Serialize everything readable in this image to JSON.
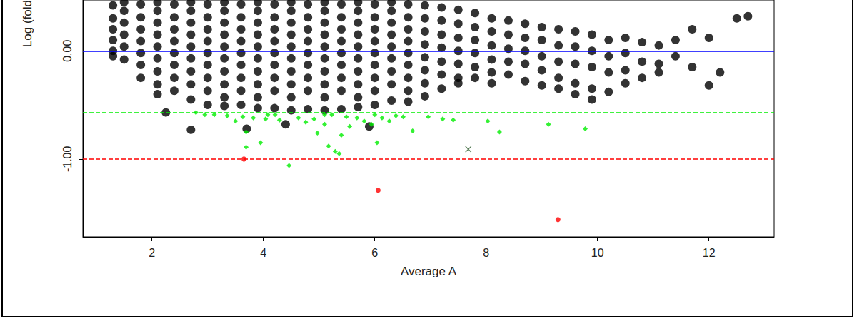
{
  "chart_data": {
    "type": "scatter",
    "x_label": "Average A",
    "y_label": "Log (fold",
    "xlim": [
      0.76,
      13.17
    ],
    "ylim": [
      -1.72,
      0.47
    ],
    "xticks": [
      2,
      4,
      6,
      8,
      10,
      12
    ],
    "yticks": [
      {
        "value": 0,
        "label": "0.00"
      },
      {
        "value": -1,
        "label": "-1.00"
      }
    ],
    "grid": false,
    "hlines": [
      {
        "y": 0,
        "color": "#0000ff",
        "line_style": "solid"
      },
      {
        "y": -0.572,
        "color": "#00ee00",
        "line_style": "dashed"
      },
      {
        "y": -1,
        "color": "#ff0000",
        "line_style": "dashed"
      }
    ],
    "series": [
      {
        "color": "#000000",
        "marker": "circle",
        "points": [
          [
            1.3,
            0.42
          ],
          [
            1.3,
            0.3
          ],
          [
            1.3,
            0.2
          ],
          [
            1.3,
            0.1
          ],
          [
            1.3,
            0.0
          ],
          [
            1.3,
            -0.05
          ],
          [
            1.5,
            0.45
          ],
          [
            1.5,
            0.37
          ],
          [
            1.5,
            0.26
          ],
          [
            1.5,
            0.15
          ],
          [
            1.5,
            0.04
          ],
          [
            1.5,
            -0.08
          ],
          [
            1.8,
            0.43
          ],
          [
            1.8,
            0.31
          ],
          [
            1.8,
            0.2
          ],
          [
            1.8,
            0.09
          ],
          [
            1.8,
            -0.02
          ],
          [
            1.8,
            -0.13
          ],
          [
            1.8,
            -0.25
          ],
          [
            2.1,
            0.45
          ],
          [
            2.1,
            0.37
          ],
          [
            2.1,
            0.26
          ],
          [
            2.1,
            0.15
          ],
          [
            2.1,
            0.04
          ],
          [
            2.1,
            -0.07
          ],
          [
            2.1,
            -0.19
          ],
          [
            2.1,
            -0.31
          ],
          [
            2.1,
            -0.4
          ],
          [
            2.4,
            0.43
          ],
          [
            2.4,
            0.31
          ],
          [
            2.4,
            0.2
          ],
          [
            2.4,
            0.09
          ],
          [
            2.4,
            -0.02
          ],
          [
            2.4,
            -0.13
          ],
          [
            2.4,
            -0.25
          ],
          [
            2.4,
            -0.37
          ],
          [
            2.25,
            -0.57
          ],
          [
            2.7,
            0.45
          ],
          [
            2.7,
            0.37
          ],
          [
            2.7,
            0.26
          ],
          [
            2.7,
            0.15
          ],
          [
            2.7,
            0.04
          ],
          [
            2.7,
            -0.07
          ],
          [
            2.7,
            -0.19
          ],
          [
            2.7,
            -0.31
          ],
          [
            2.7,
            -0.45
          ],
          [
            2.7,
            -0.73
          ],
          [
            3.0,
            0.43
          ],
          [
            3.0,
            0.31
          ],
          [
            3.0,
            0.2
          ],
          [
            3.0,
            0.09
          ],
          [
            3.0,
            -0.02
          ],
          [
            3.0,
            -0.13
          ],
          [
            3.0,
            -0.25
          ],
          [
            3.0,
            -0.37
          ],
          [
            3.0,
            -0.5
          ],
          [
            3.3,
            0.45
          ],
          [
            3.3,
            0.37
          ],
          [
            3.3,
            0.26
          ],
          [
            3.3,
            0.15
          ],
          [
            3.3,
            0.04
          ],
          [
            3.3,
            -0.07
          ],
          [
            3.3,
            -0.19
          ],
          [
            3.3,
            -0.31
          ],
          [
            3.3,
            -0.43
          ],
          [
            3.3,
            -0.51
          ],
          [
            3.6,
            0.43
          ],
          [
            3.6,
            0.31
          ],
          [
            3.6,
            0.2
          ],
          [
            3.6,
            0.09
          ],
          [
            3.6,
            -0.02
          ],
          [
            3.6,
            -0.13
          ],
          [
            3.6,
            -0.25
          ],
          [
            3.6,
            -0.37
          ],
          [
            3.6,
            -0.5
          ],
          [
            3.7,
            -0.72
          ],
          [
            3.9,
            0.45
          ],
          [
            3.9,
            0.37
          ],
          [
            3.9,
            0.26
          ],
          [
            3.9,
            0.15
          ],
          [
            3.9,
            0.04
          ],
          [
            3.9,
            -0.07
          ],
          [
            3.9,
            -0.19
          ],
          [
            3.9,
            -0.31
          ],
          [
            3.9,
            -0.43
          ],
          [
            3.9,
            -0.53
          ],
          [
            4.2,
            0.43
          ],
          [
            4.2,
            0.31
          ],
          [
            4.2,
            0.2
          ],
          [
            4.2,
            0.09
          ],
          [
            4.2,
            -0.02
          ],
          [
            4.2,
            -0.13
          ],
          [
            4.2,
            -0.25
          ],
          [
            4.2,
            -0.37
          ],
          [
            4.2,
            -0.53
          ],
          [
            4.4,
            -0.68
          ],
          [
            4.5,
            0.45
          ],
          [
            4.5,
            0.37
          ],
          [
            4.5,
            0.26
          ],
          [
            4.5,
            0.15
          ],
          [
            4.5,
            0.04
          ],
          [
            4.5,
            -0.07
          ],
          [
            4.5,
            -0.19
          ],
          [
            4.5,
            -0.31
          ],
          [
            4.5,
            -0.43
          ],
          [
            4.5,
            -0.55
          ],
          [
            4.8,
            0.43
          ],
          [
            4.8,
            0.31
          ],
          [
            4.8,
            0.2
          ],
          [
            4.8,
            0.09
          ],
          [
            4.8,
            -0.02
          ],
          [
            4.8,
            -0.13
          ],
          [
            4.8,
            -0.25
          ],
          [
            4.8,
            -0.37
          ],
          [
            4.8,
            -0.54
          ],
          [
            5.1,
            0.45
          ],
          [
            5.1,
            0.37
          ],
          [
            5.1,
            0.26
          ],
          [
            5.1,
            0.15
          ],
          [
            5.1,
            0.04
          ],
          [
            5.1,
            -0.07
          ],
          [
            5.1,
            -0.19
          ],
          [
            5.1,
            -0.31
          ],
          [
            5.1,
            -0.43
          ],
          [
            5.1,
            -0.55
          ],
          [
            5.4,
            0.43
          ],
          [
            5.4,
            0.31
          ],
          [
            5.4,
            0.2
          ],
          [
            5.4,
            0.09
          ],
          [
            5.4,
            -0.02
          ],
          [
            5.4,
            -0.13
          ],
          [
            5.4,
            -0.25
          ],
          [
            5.4,
            -0.37
          ],
          [
            5.4,
            -0.54
          ],
          [
            5.7,
            0.45
          ],
          [
            5.7,
            0.37
          ],
          [
            5.7,
            0.26
          ],
          [
            5.7,
            0.15
          ],
          [
            5.7,
            0.04
          ],
          [
            5.7,
            -0.07
          ],
          [
            5.7,
            -0.19
          ],
          [
            5.7,
            -0.31
          ],
          [
            5.7,
            -0.43
          ],
          [
            5.7,
            -0.52
          ],
          [
            6.0,
            0.43
          ],
          [
            6.0,
            0.31
          ],
          [
            6.0,
            0.2
          ],
          [
            6.0,
            0.09
          ],
          [
            6.0,
            -0.02
          ],
          [
            6.0,
            -0.13
          ],
          [
            6.0,
            -0.25
          ],
          [
            6.0,
            -0.37
          ],
          [
            6.0,
            -0.5
          ],
          [
            5.9,
            -0.7
          ],
          [
            6.3,
            0.45
          ],
          [
            6.3,
            0.37
          ],
          [
            6.3,
            0.26
          ],
          [
            6.3,
            0.15
          ],
          [
            6.3,
            0.04
          ],
          [
            6.3,
            -0.07
          ],
          [
            6.3,
            -0.19
          ],
          [
            6.3,
            -0.31
          ],
          [
            6.3,
            -0.46
          ],
          [
            6.6,
            0.43
          ],
          [
            6.6,
            0.31
          ],
          [
            6.6,
            0.2
          ],
          [
            6.6,
            0.09
          ],
          [
            6.6,
            -0.02
          ],
          [
            6.6,
            -0.13
          ],
          [
            6.6,
            -0.25
          ],
          [
            6.6,
            -0.37
          ],
          [
            6.6,
            -0.47
          ],
          [
            6.9,
            0.42
          ],
          [
            6.9,
            0.3
          ],
          [
            6.9,
            0.18
          ],
          [
            6.9,
            0.06
          ],
          [
            6.9,
            -0.06
          ],
          [
            6.9,
            -0.18
          ],
          [
            6.9,
            -0.3
          ],
          [
            6.9,
            -0.42
          ],
          [
            7.2,
            0.4
          ],
          [
            7.2,
            0.28
          ],
          [
            7.2,
            0.15
          ],
          [
            7.2,
            0.03
          ],
          [
            7.2,
            -0.1
          ],
          [
            7.2,
            -0.22
          ],
          [
            7.2,
            -0.35
          ],
          [
            7.5,
            0.38
          ],
          [
            7.5,
            0.25
          ],
          [
            7.5,
            0.12
          ],
          [
            7.5,
            0.0
          ],
          [
            7.5,
            -0.12
          ],
          [
            7.5,
            -0.25
          ],
          [
            7.5,
            -0.3
          ],
          [
            7.8,
            0.35
          ],
          [
            7.8,
            0.22
          ],
          [
            7.8,
            0.1
          ],
          [
            7.8,
            -0.02
          ],
          [
            7.8,
            -0.15
          ],
          [
            7.8,
            -0.25
          ],
          [
            8.1,
            0.3
          ],
          [
            8.1,
            0.18
          ],
          [
            8.1,
            0.05
          ],
          [
            8.1,
            -0.08
          ],
          [
            8.1,
            -0.2
          ],
          [
            8.1,
            -0.3
          ],
          [
            8.4,
            0.28
          ],
          [
            8.4,
            0.15
          ],
          [
            8.4,
            0.02
          ],
          [
            8.4,
            -0.1
          ],
          [
            8.4,
            -0.22
          ],
          [
            8.7,
            0.25
          ],
          [
            8.7,
            0.12
          ],
          [
            8.7,
            0.0
          ],
          [
            8.7,
            -0.12
          ],
          [
            8.7,
            -0.28
          ],
          [
            9.0,
            0.22
          ],
          [
            9.0,
            0.1
          ],
          [
            9.0,
            -0.05
          ],
          [
            9.0,
            -0.18
          ],
          [
            9.0,
            -0.32
          ],
          [
            9.3,
            0.2
          ],
          [
            9.3,
            0.05
          ],
          [
            9.3,
            -0.1
          ],
          [
            9.3,
            -0.25
          ],
          [
            9.3,
            -0.35
          ],
          [
            9.6,
            0.18
          ],
          [
            9.6,
            0.04
          ],
          [
            9.6,
            -0.12
          ],
          [
            9.6,
            -0.3
          ],
          [
            9.6,
            -0.4
          ],
          [
            9.9,
            0.15
          ],
          [
            9.9,
            0.0
          ],
          [
            9.9,
            -0.15
          ],
          [
            9.9,
            -0.35
          ],
          [
            9.9,
            -0.45
          ],
          [
            10.2,
            0.1
          ],
          [
            10.2,
            -0.05
          ],
          [
            10.2,
            -0.2
          ],
          [
            10.2,
            -0.38
          ],
          [
            10.5,
            0.12
          ],
          [
            10.5,
            -0.02
          ],
          [
            10.5,
            -0.18
          ],
          [
            10.5,
            -0.3
          ],
          [
            10.8,
            0.08
          ],
          [
            10.8,
            -0.1
          ],
          [
            10.8,
            -0.25
          ],
          [
            11.1,
            0.05
          ],
          [
            11.1,
            -0.12
          ],
          [
            11.1,
            -0.2
          ],
          [
            11.4,
            0.1
          ],
          [
            11.4,
            -0.05
          ],
          [
            11.7,
            0.2
          ],
          [
            11.7,
            -0.15
          ],
          [
            12.0,
            0.12
          ],
          [
            12.0,
            -0.32
          ],
          [
            12.2,
            -0.2
          ],
          [
            12.5,
            0.3
          ],
          [
            12.7,
            0.32
          ]
        ]
      },
      {
        "color": "#00ee00",
        "marker": "diamond",
        "points": [
          [
            2.79,
            -0.57
          ],
          [
            2.95,
            -0.59
          ],
          [
            3.12,
            -0.59
          ],
          [
            3.35,
            -0.6
          ],
          [
            3.5,
            -0.65
          ],
          [
            3.63,
            -0.61
          ],
          [
            3.69,
            -0.75
          ],
          [
            3.69,
            -0.89
          ],
          [
            3.82,
            -0.62
          ],
          [
            3.95,
            -0.85
          ],
          [
            4.04,
            -0.63
          ],
          [
            4.08,
            -0.59
          ],
          [
            4.21,
            -0.59
          ],
          [
            4.29,
            -0.64
          ],
          [
            4.46,
            -1.06
          ],
          [
            4.63,
            -0.62
          ],
          [
            4.76,
            -0.66
          ],
          [
            4.91,
            -0.63
          ],
          [
            4.97,
            -0.76
          ],
          [
            5.1,
            -0.68
          ],
          [
            5.1,
            -0.59
          ],
          [
            5.17,
            -0.88
          ],
          [
            5.23,
            -0.59
          ],
          [
            5.29,
            -0.93
          ],
          [
            5.36,
            -0.95
          ],
          [
            5.4,
            -0.78
          ],
          [
            5.49,
            -0.61
          ],
          [
            5.55,
            -0.7
          ],
          [
            5.68,
            -0.62
          ],
          [
            5.81,
            -0.65
          ],
          [
            5.94,
            -0.68
          ],
          [
            6.0,
            -0.59
          ],
          [
            6.04,
            -0.85
          ],
          [
            6.13,
            -0.62
          ],
          [
            6.26,
            -0.65
          ],
          [
            6.38,
            -0.6
          ],
          [
            6.51,
            -0.61
          ],
          [
            6.68,
            -0.74
          ],
          [
            6.96,
            -0.61
          ],
          [
            7.22,
            -0.63
          ],
          [
            7.41,
            -0.64
          ],
          [
            8.03,
            -0.65
          ],
          [
            8.24,
            -0.75
          ],
          [
            9.12,
            -0.68
          ],
          [
            9.78,
            -0.72
          ]
        ]
      },
      {
        "color": "#ff0000",
        "marker": "circle",
        "points": [
          [
            3.65,
            -1.0
          ],
          [
            6.06,
            -1.29
          ],
          [
            9.29,
            -1.56
          ]
        ]
      },
      {
        "color": "#2e5e2e",
        "marker": "x",
        "points": [
          [
            7.68,
            -0.91
          ]
        ]
      }
    ]
  }
}
